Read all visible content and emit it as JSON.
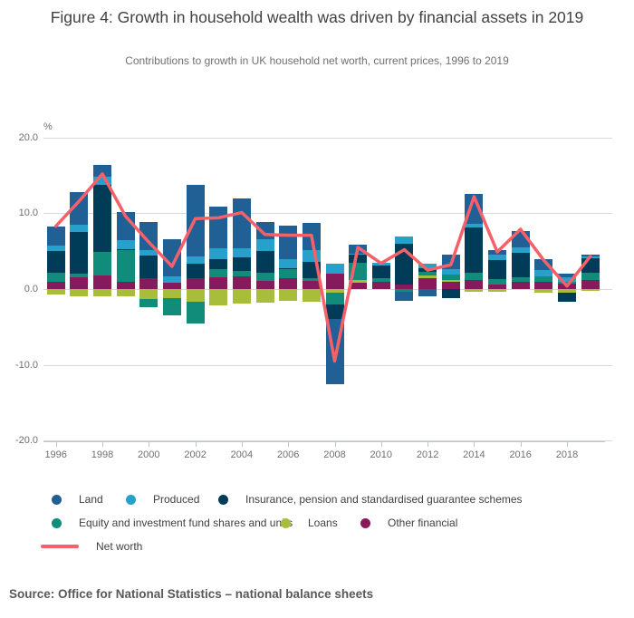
{
  "title": "Figure 4: Growth in household wealth was driven by financial assets in 2019",
  "subtitle": "Contributions to growth in UK household net worth, current prices, 1996 to 2019",
  "source": "Source: Office for National Statistics – national balance sheets",
  "y_axis": {
    "unit_label": "%",
    "ticks": [
      "20.0",
      "10.0",
      "0.0",
      "-10.0",
      "-20.0"
    ]
  },
  "x_axis": {
    "tick_labels": [
      "1996",
      "1998",
      "2000",
      "2002",
      "2004",
      "2006",
      "2008",
      "2010",
      "2012",
      "2014",
      "2016",
      "2018"
    ]
  },
  "colors": {
    "land": "#206095",
    "produced": "#27A0CC",
    "insurance": "#003C57",
    "equity": "#118C7B",
    "loans": "#A8BD3A",
    "other_financial": "#871A5B",
    "net_worth": "#F66068",
    "gridline": "#d9d9d9",
    "text": "#414042"
  },
  "chart_data": {
    "type": "bar",
    "subtype": "stacked-with-line",
    "title": "Figure 4: Growth in household wealth was driven by financial assets in 2019",
    "xlabel": "",
    "ylabel": "%",
    "ylim": [
      -20,
      20
    ],
    "grid": true,
    "legend_position": "bottom",
    "x": [
      1996,
      1997,
      1998,
      1999,
      2000,
      2001,
      2002,
      2003,
      2004,
      2005,
      2006,
      2007,
      2008,
      2009,
      2010,
      2011,
      2012,
      2013,
      2014,
      2015,
      2016,
      2017,
      2018,
      2019
    ],
    "series": [
      {
        "name": "Land",
        "key": "land",
        "color": "#206095",
        "values": [
          2.6,
          4.3,
          1.6,
          3.7,
          3.8,
          4.9,
          9.5,
          5.5,
          6.5,
          2.2,
          4.4,
          3.5,
          -8.7,
          1.1,
          0.0,
          -1.2,
          -1.0,
          2.0,
          3.9,
          0.5,
          2.2,
          1.5,
          0.5,
          0.3
        ]
      },
      {
        "name": "Produced",
        "key": "produced",
        "color": "#27A0CC",
        "values": [
          0.7,
          1.0,
          1.1,
          1.2,
          0.7,
          0.9,
          1.0,
          1.5,
          1.2,
          1.6,
          1.2,
          1.6,
          1.3,
          0.2,
          0.4,
          0.9,
          0.7,
          0.7,
          0.5,
          0.8,
          0.7,
          0.8,
          0.5,
          0.2
        ]
      },
      {
        "name": "Insurance, pension and standardised guarantee schemes",
        "key": "insurance",
        "color": "#003C57",
        "values": [
          2.9,
          5.5,
          8.8,
          0.2,
          3.0,
          0.0,
          1.9,
          1.3,
          1.8,
          2.8,
          0.2,
          2.2,
          -1.9,
          1.0,
          1.7,
          5.4,
          0.4,
          -1.2,
          6.0,
          2.5,
          3.2,
          0.0,
          -1.2,
          1.9
        ]
      },
      {
        "name": "Equity and investment fund shares and units",
        "key": "equity",
        "color": "#118C7B",
        "values": [
          1.1,
          0.5,
          3.1,
          4.1,
          -1.1,
          -2.3,
          -2.9,
          1.0,
          0.7,
          1.1,
          1.2,
          0.3,
          -1.5,
          2.3,
          0.5,
          -0.3,
          0.5,
          0.7,
          0.9,
          0.7,
          0.6,
          0.8,
          0.3,
          1.0
        ]
      },
      {
        "name": "Loans",
        "key": "loans",
        "color": "#A8BD3A",
        "values": [
          -0.7,
          -1.0,
          -1.0,
          -0.9,
          -1.3,
          -1.2,
          -1.7,
          -2.2,
          -1.9,
          -1.8,
          -1.5,
          -1.7,
          -0.5,
          0.4,
          0.0,
          0.0,
          0.4,
          0.3,
          -0.3,
          -0.4,
          0.0,
          -0.5,
          -0.5,
          -0.2
        ]
      },
      {
        "name": "Other financial",
        "key": "other_financial",
        "color": "#871A5B",
        "values": [
          1.0,
          1.5,
          1.8,
          1.0,
          1.4,
          0.8,
          1.4,
          1.6,
          1.7,
          1.1,
          1.4,
          1.1,
          2.0,
          0.8,
          0.9,
          0.6,
          1.4,
          0.9,
          1.2,
          0.6,
          1.0,
          0.9,
          0.7,
          1.2
        ]
      }
    ],
    "line": {
      "name": "Net worth",
      "color": "#F66068",
      "values": [
        8.3,
        11.6,
        15.2,
        9.6,
        6.2,
        3.0,
        9.3,
        9.4,
        10.1,
        7.2,
        7.1,
        7.1,
        -9.5,
        5.5,
        3.4,
        5.2,
        2.5,
        3.2,
        12.2,
        4.9,
        7.9,
        3.8,
        0.4,
        4.3
      ]
    }
  }
}
